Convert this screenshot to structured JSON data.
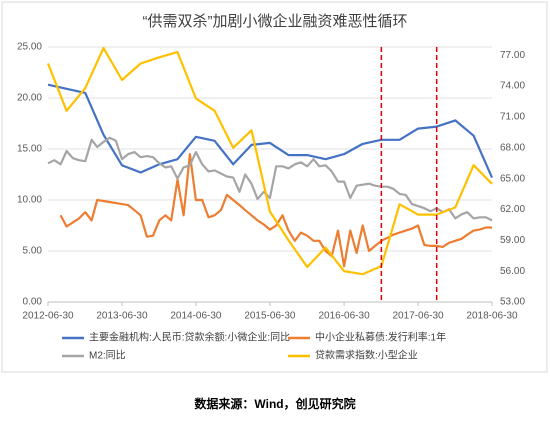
{
  "chart_data": {
    "type": "line",
    "title": "“供需双杀”加剧小微企业融资难恶性循环",
    "caption": "数据来源：Wind，创见研究院",
    "xlim": [
      "2012-06-30",
      "2018-06-30"
    ],
    "xticks": [
      "2012-06-30",
      "2013-06-30",
      "2014-06-30",
      "2015-06-30",
      "2016-06-30",
      "2017-06-30",
      "2018-06-30"
    ],
    "ylim": [
      0,
      25
    ],
    "yticks": [
      {
        "value": 0,
        "label": "0.00"
      },
      {
        "value": 5,
        "label": "5.00"
      },
      {
        "value": 10,
        "label": "10.00"
      },
      {
        "value": 15,
        "label": "15.00"
      },
      {
        "value": 20,
        "label": "20.00"
      },
      {
        "value": 25,
        "label": "25.00"
      }
    ],
    "y2lim": [
      53,
      77.8
    ],
    "y2ticks": [
      {
        "value": 53,
        "label": "53.00"
      },
      {
        "value": 56,
        "label": "56.00"
      },
      {
        "value": 59,
        "label": "59.00"
      },
      {
        "value": 62,
        "label": "62.00"
      },
      {
        "value": 65,
        "label": "65.00"
      },
      {
        "value": 68,
        "label": "68.00"
      },
      {
        "value": 71,
        "label": "71.00"
      },
      {
        "value": 74,
        "label": "74.00"
      },
      {
        "value": 77,
        "label": "77.00"
      }
    ],
    "grid": true,
    "vlines": [
      "2016-12-31",
      "2017-09-30"
    ],
    "vline_color": "#e00000",
    "series": [
      {
        "name": "主要金融机构:人民币:贷款余额:小微企业:同比",
        "color": "#4472c4",
        "x": [
          "2012-06-30",
          "2012-09-30",
          "2012-12-31",
          "2013-03-31",
          "2013-06-30",
          "2013-09-30",
          "2013-12-31",
          "2014-03-31",
          "2014-06-30",
          "2014-09-30",
          "2014-12-31",
          "2015-03-31",
          "2015-06-30",
          "2015-09-30",
          "2015-12-31",
          "2016-03-31",
          "2016-06-30",
          "2016-09-30",
          "2016-12-31",
          "2017-03-31",
          "2017-06-30",
          "2017-09-30",
          "2017-12-31",
          "2018-03-31",
          "2018-06-30"
        ],
        "values": [
          21.3,
          20.9,
          20.5,
          16.4,
          13.4,
          12.7,
          13.5,
          14.0,
          16.2,
          15.8,
          13.5,
          15.4,
          15.6,
          14.4,
          14.4,
          14.0,
          14.5,
          15.5,
          15.9,
          15.9,
          17.0,
          17.2,
          17.8,
          16.3,
          12.2
        ]
      },
      {
        "name": "中小企业私募债:发行利率:1年",
        "color": "#ed7d31",
        "x": [
          "2012-08-31",
          "2012-09-30",
          "2012-10-31",
          "2012-11-30",
          "2012-12-31",
          "2013-01-31",
          "2013-02-28",
          "2013-03-31",
          "2013-04-30",
          "2013-05-31",
          "2013-06-30",
          "2013-07-31",
          "2013-08-31",
          "2013-09-30",
          "2013-10-31",
          "2013-11-30",
          "2013-12-31",
          "2014-01-31",
          "2014-02-28",
          "2014-03-31",
          "2014-04-30",
          "2014-05-31",
          "2014-06-30",
          "2014-07-31",
          "2014-08-31",
          "2014-09-30",
          "2014-10-31",
          "2014-11-30",
          "2014-12-31",
          "2015-01-31",
          "2015-02-28",
          "2015-03-31",
          "2015-04-30",
          "2015-05-31",
          "2015-06-30",
          "2015-07-31",
          "2015-08-31",
          "2015-09-30",
          "2015-10-31",
          "2015-11-30",
          "2015-12-31",
          "2016-01-31",
          "2016-02-29",
          "2016-03-31",
          "2016-04-30",
          "2016-05-31",
          "2016-06-30",
          "2016-07-31",
          "2016-08-31",
          "2016-09-30",
          "2016-10-31",
          "2016-11-30",
          "2016-12-31",
          "2017-01-31",
          "2017-02-28",
          "2017-03-31",
          "2017-04-30",
          "2017-05-31",
          "2017-06-30",
          "2017-07-31",
          "2017-08-31",
          "2017-09-30",
          "2017-10-31",
          "2017-11-30",
          "2017-12-31",
          "2018-01-31",
          "2018-02-28",
          "2018-03-31",
          "2018-04-30",
          "2018-05-31",
          "2018-06-30"
        ],
        "values": [
          8.5,
          7.4,
          7.8,
          8.2,
          8.8,
          8.0,
          10.0,
          9.9,
          9.8,
          9.7,
          9.6,
          9.5,
          9.0,
          8.5,
          6.4,
          6.5,
          8.0,
          8.5,
          8.0,
          12.0,
          8.5,
          14.5,
          10.0,
          10.0,
          8.3,
          8.5,
          9.0,
          10.5,
          10.0,
          9.5,
          9.0,
          8.5,
          8.0,
          7.6,
          7.1,
          7.5,
          8.5,
          7.0,
          6.0,
          6.8,
          6.5,
          6.0,
          6.0,
          5.0,
          4.5,
          7.0,
          3.5,
          7.0,
          4.8,
          7.5,
          5.0,
          5.5,
          6.0,
          6.3,
          6.6,
          6.8,
          7.0,
          7.2,
          7.5,
          5.6,
          5.5,
          5.5,
          5.4,
          5.8,
          6.0,
          6.2,
          6.6,
          7.0,
          7.1,
          7.3,
          7.3
        ]
      },
      {
        "name": "M2:同比",
        "color": "#a5a5a5",
        "x": [
          "2012-06-30",
          "2012-07-31",
          "2012-08-31",
          "2012-09-30",
          "2012-10-31",
          "2012-11-30",
          "2012-12-31",
          "2013-01-31",
          "2013-02-28",
          "2013-03-31",
          "2013-04-30",
          "2013-05-31",
          "2013-06-30",
          "2013-07-31",
          "2013-08-31",
          "2013-09-30",
          "2013-10-31",
          "2013-11-30",
          "2013-12-31",
          "2014-01-31",
          "2014-02-28",
          "2014-03-31",
          "2014-04-30",
          "2014-05-31",
          "2014-06-30",
          "2014-07-31",
          "2014-08-31",
          "2014-09-30",
          "2014-10-31",
          "2014-11-30",
          "2014-12-31",
          "2015-01-31",
          "2015-02-28",
          "2015-03-31",
          "2015-04-30",
          "2015-05-31",
          "2015-06-30",
          "2015-07-31",
          "2015-08-31",
          "2015-09-30",
          "2015-10-31",
          "2015-11-30",
          "2015-12-31",
          "2016-01-31",
          "2016-02-29",
          "2016-03-31",
          "2016-04-30",
          "2016-05-31",
          "2016-06-30",
          "2016-07-31",
          "2016-08-31",
          "2016-09-30",
          "2016-10-31",
          "2016-11-30",
          "2016-12-31",
          "2017-01-31",
          "2017-02-28",
          "2017-03-31",
          "2017-04-30",
          "2017-05-31",
          "2017-06-30",
          "2017-07-31",
          "2017-08-31",
          "2017-09-30",
          "2017-10-31",
          "2017-11-30",
          "2017-12-31",
          "2018-01-31",
          "2018-02-28",
          "2018-03-31",
          "2018-04-30",
          "2018-05-31",
          "2018-06-30"
        ],
        "values": [
          13.6,
          13.9,
          13.5,
          14.8,
          14.1,
          13.9,
          13.8,
          15.9,
          15.2,
          15.7,
          16.1,
          15.8,
          14.0,
          14.5,
          14.7,
          14.2,
          14.3,
          14.2,
          13.6,
          13.2,
          13.3,
          12.1,
          13.2,
          13.4,
          14.7,
          13.5,
          12.8,
          12.9,
          12.6,
          12.3,
          12.2,
          10.8,
          12.5,
          11.6,
          10.1,
          10.8,
          10.2,
          13.3,
          13.3,
          13.1,
          13.5,
          13.7,
          13.3,
          14.0,
          13.3,
          13.4,
          12.8,
          11.8,
          11.8,
          10.2,
          11.4,
          11.5,
          11.6,
          11.4,
          11.3,
          11.3,
          11.1,
          10.6,
          10.5,
          9.6,
          9.4,
          9.2,
          8.9,
          9.2,
          8.8,
          9.1,
          8.2,
          8.6,
          8.8,
          8.2,
          8.3,
          8.3,
          8.0
        ]
      },
      {
        "name": "贷款需求指数:小型企业",
        "color": "#ffc000",
        "axis": "y2",
        "x": [
          "2012-06-30",
          "2012-09-30",
          "2012-12-31",
          "2013-03-31",
          "2013-06-30",
          "2013-09-30",
          "2013-12-31",
          "2014-03-31",
          "2014-06-30",
          "2014-09-30",
          "2014-12-31",
          "2015-03-31",
          "2015-06-30",
          "2015-09-30",
          "2015-12-31",
          "2016-03-31",
          "2016-06-30",
          "2016-09-30",
          "2016-12-31",
          "2017-03-31",
          "2017-06-30",
          "2017-09-30",
          "2017-12-31",
          "2018-03-31",
          "2018-06-30"
        ],
        "values": [
          76.2,
          71.6,
          73.8,
          77.7,
          74.6,
          76.2,
          76.8,
          77.3,
          72.8,
          71.6,
          68.0,
          69.7,
          61.8,
          59.0,
          56.4,
          58.3,
          56.0,
          55.7,
          56.5,
          62.5,
          61.5,
          61.5,
          62.2,
          66.3,
          64.5
        ]
      }
    ]
  }
}
